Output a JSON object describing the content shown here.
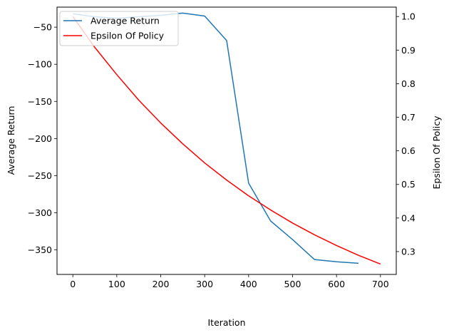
{
  "chart_data": {
    "type": "line",
    "xlabel": "Iteration",
    "ylabel": "Average Return",
    "y2label": "Epsilon Of Policy",
    "xlim": [
      -36,
      736
    ],
    "ylim": [
      -383,
      -23
    ],
    "y2lim": [
      0.232,
      1.028
    ],
    "xticks": [
      0,
      100,
      200,
      300,
      400,
      500,
      600,
      700
    ],
    "yticks": [
      -50,
      -100,
      -150,
      -200,
      -250,
      -300,
      -350
    ],
    "y2ticks": [
      0.3,
      0.4,
      0.5,
      0.6,
      0.7,
      0.8,
      0.9,
      1.0
    ],
    "grid": false,
    "legend_position": "upper-left",
    "series": [
      {
        "name": "Average Return",
        "axis": "left",
        "color": "#1f77b4",
        "x": [
          0,
          50,
          100,
          150,
          200,
          250,
          300,
          350,
          400,
          450,
          500,
          550,
          600,
          650
        ],
        "y": [
          -32,
          -36,
          -38,
          -36,
          -34,
          -31,
          -35,
          -68,
          -260,
          -311,
          -336,
          -363,
          -366,
          -368
        ]
      },
      {
        "name": "Epsilon Of Policy",
        "axis": "right",
        "color": "#ff0000",
        "x": [
          0,
          50,
          100,
          150,
          200,
          250,
          300,
          350,
          400,
          450,
          500,
          550,
          600,
          650,
          700
        ],
        "y": [
          1.0,
          0.908,
          0.827,
          0.751,
          0.683,
          0.621,
          0.564,
          0.513,
          0.466,
          0.424,
          0.385,
          0.35,
          0.318,
          0.289,
          0.263
        ]
      }
    ]
  }
}
